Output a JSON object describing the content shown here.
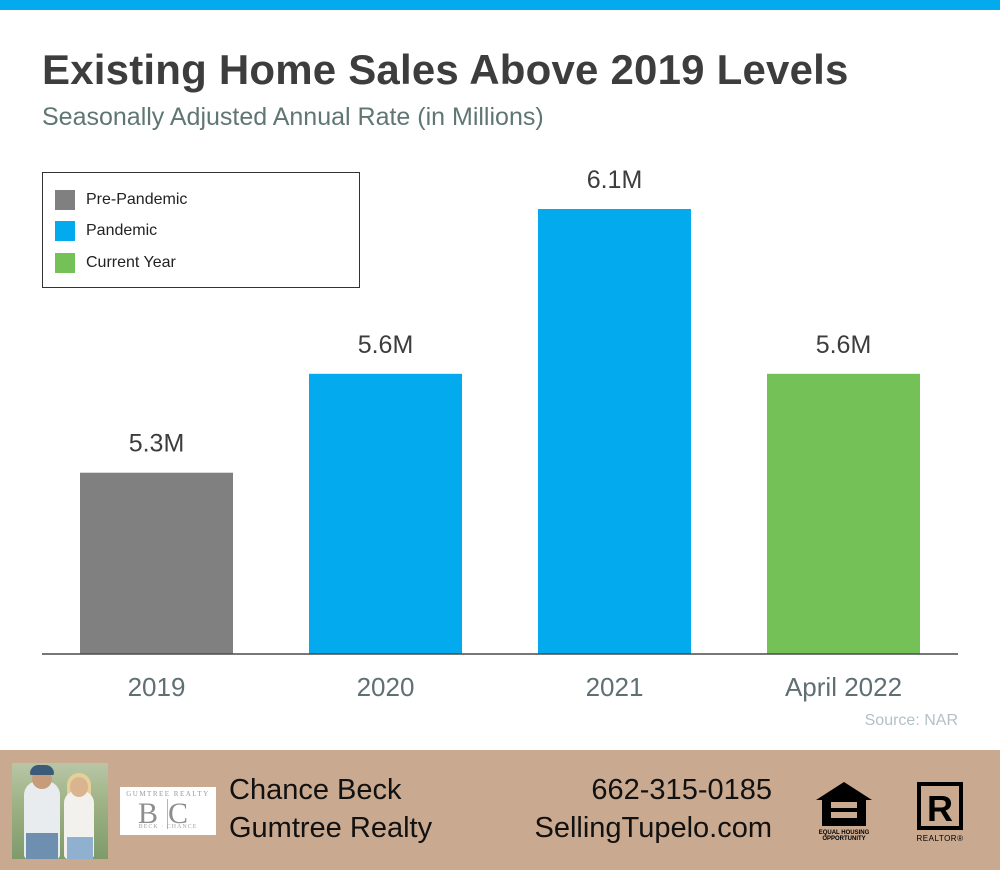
{
  "title": "Existing Home Sales Above 2019 Levels",
  "subtitle": "Seasonally Adjusted Annual Rate (in Millions)",
  "legend": [
    {
      "label": "Pre-Pandemic",
      "color": "#808080"
    },
    {
      "label": "Pandemic",
      "color": "#04aaee"
    },
    {
      "label": "Current Year",
      "color": "#74c257"
    }
  ],
  "chart_data": {
    "type": "bar",
    "title": "Existing Home Sales Above 2019 Levels",
    "subtitle": "Seasonally Adjusted Annual Rate (in Millions)",
    "categories": [
      "2019",
      "2020",
      "2021",
      "April 2022"
    ],
    "values": [
      5.3,
      5.6,
      6.1,
      5.6
    ],
    "value_labels": [
      "5.3M",
      "5.6M",
      "6.1M",
      "5.6M"
    ],
    "colors": [
      "#808080",
      "#04aaee",
      "#04aaee",
      "#74c257"
    ],
    "xlabel": "",
    "ylabel": "",
    "ylim": [
      4.75,
      6.2
    ],
    "grid": false,
    "legend_position": "top-left"
  },
  "source": "Source: NAR",
  "footer": {
    "logo_top": "GUMTREE REALTY",
    "logo_letters": "BC",
    "logo_sub": "BECK · CHANCE",
    "agent_name": "Chance Beck",
    "company": "Gumtree Realty",
    "phone": "662-315-0185",
    "website": "SellingTupelo.com",
    "eho_text": "EQUAL HOUSING OPPORTUNITY",
    "realtor_text": "REALTOR®"
  },
  "colors": {
    "accent": "#04aaee",
    "footer_bg": "#c9a98f"
  }
}
